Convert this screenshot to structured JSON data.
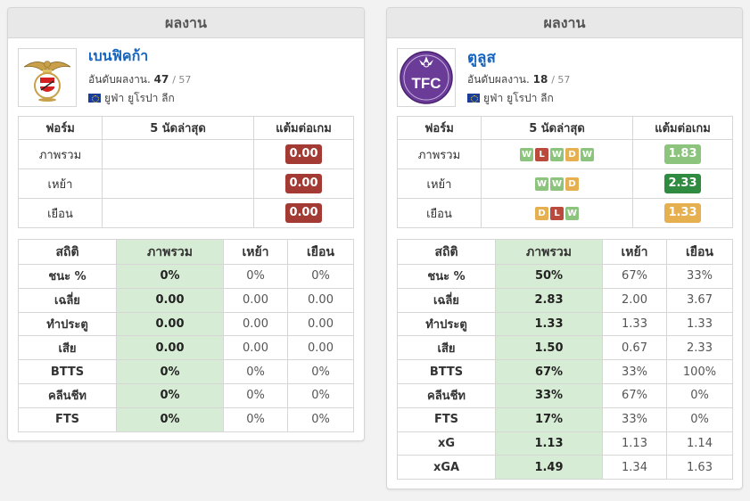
{
  "panels": [
    {
      "header": "ผลงาน",
      "team": {
        "name": "เบนฟิคก้า",
        "rank_label": "อันดับผลงาน.",
        "rank": "47",
        "rank_total": "/ 57",
        "league": "ยูฟ่า ยูโรปา ลีก",
        "logo_icon": "benfica-crest-icon"
      },
      "form": {
        "headers": [
          "ฟอร์ม",
          "5 นัดล่าสุด",
          "แต้มต่อเกม"
        ],
        "rows": [
          {
            "label": "ภาพรวม",
            "results": [],
            "ppg": "0.00",
            "ppg_color": "#a33a33"
          },
          {
            "label": "เหย้า",
            "results": [],
            "ppg": "0.00",
            "ppg_color": "#a33a33"
          },
          {
            "label": "เยือน",
            "results": [],
            "ppg": "0.00",
            "ppg_color": "#a33a33"
          }
        ]
      },
      "stats": {
        "headers": [
          "สถิติ",
          "ภาพรวม",
          "เหย้า",
          "เยือน"
        ],
        "rows": [
          {
            "label": "ชนะ %",
            "overall": "0%",
            "home": "0%",
            "away": "0%"
          },
          {
            "label": "เฉลี่ย",
            "overall": "0.00",
            "home": "0.00",
            "away": "0.00"
          },
          {
            "label": "ทำประตู",
            "overall": "0.00",
            "home": "0.00",
            "away": "0.00"
          },
          {
            "label": "เสีย",
            "overall": "0.00",
            "home": "0.00",
            "away": "0.00"
          },
          {
            "label": "BTTS",
            "overall": "0%",
            "home": "0%",
            "away": "0%"
          },
          {
            "label": "คลีนชีท",
            "overall": "0%",
            "home": "0%",
            "away": "0%"
          },
          {
            "label": "FTS",
            "overall": "0%",
            "home": "0%",
            "away": "0%"
          }
        ]
      }
    },
    {
      "header": "ผลงาน",
      "team": {
        "name": "ตูลูส",
        "rank_label": "อันดับผลงาน.",
        "rank": "18",
        "rank_total": "/ 57",
        "league": "ยูฟ่า ยูโรปา ลีก",
        "logo_icon": "toulouse-crest-icon",
        "logo_text": "TFC"
      },
      "form": {
        "headers": [
          "ฟอร์ม",
          "5 นัดล่าสุด",
          "แต้มต่อเกม"
        ],
        "rows": [
          {
            "label": "ภาพรวม",
            "results": [
              "W",
              "L",
              "W",
              "D",
              "W"
            ],
            "ppg": "1.83",
            "ppg_color": "#8cc47e"
          },
          {
            "label": "เหย้า",
            "results": [
              "W",
              "W",
              "D"
            ],
            "ppg": "2.33",
            "ppg_color": "#2e8b3f"
          },
          {
            "label": "เยือน",
            "results": [
              "D",
              "L",
              "W"
            ],
            "ppg": "1.33",
            "ppg_color": "#e6b050"
          }
        ]
      },
      "stats": {
        "headers": [
          "สถิติ",
          "ภาพรวม",
          "เหย้า",
          "เยือน"
        ],
        "rows": [
          {
            "label": "ชนะ %",
            "overall": "50%",
            "home": "67%",
            "away": "33%"
          },
          {
            "label": "เฉลี่ย",
            "overall": "2.83",
            "home": "2.00",
            "away": "3.67"
          },
          {
            "label": "ทำประตู",
            "overall": "1.33",
            "home": "1.33",
            "away": "1.33"
          },
          {
            "label": "เสีย",
            "overall": "1.50",
            "home": "0.67",
            "away": "2.33"
          },
          {
            "label": "BTTS",
            "overall": "67%",
            "home": "33%",
            "away": "100%"
          },
          {
            "label": "คลีนชีท",
            "overall": "33%",
            "home": "67%",
            "away": "0%"
          },
          {
            "label": "FTS",
            "overall": "17%",
            "home": "33%",
            "away": "0%"
          },
          {
            "label": "xG",
            "overall": "1.13",
            "home": "1.13",
            "away": "1.14"
          },
          {
            "label": "xGA",
            "overall": "1.49",
            "home": "1.34",
            "away": "1.63"
          }
        ]
      }
    }
  ],
  "result_colors": {
    "W": "#8cc47e",
    "L": "#b94a3c",
    "D": "#e6b050"
  }
}
